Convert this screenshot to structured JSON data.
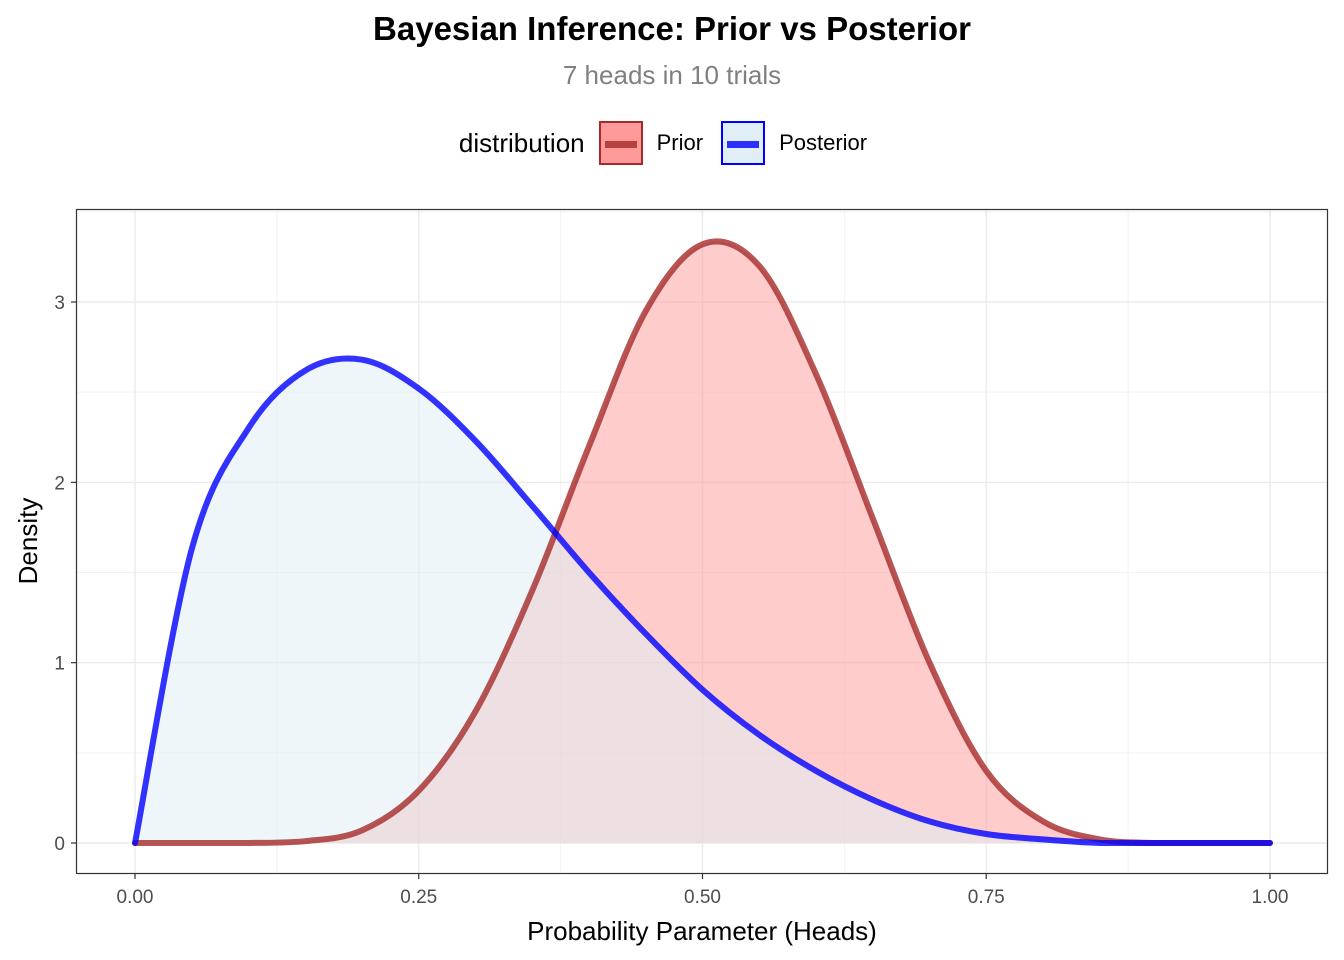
{
  "chart_data": {
    "type": "area",
    "title": "Bayesian Inference: Prior vs Posterior",
    "subtitle": "7 heads in 10 trials",
    "xlabel": "Probability Parameter (Heads)",
    "ylabel": "Density",
    "xlim": [
      0,
      1
    ],
    "ylim": [
      -0.17,
      3.5
    ],
    "x_ticks": [
      0,
      0.25,
      0.5,
      0.75,
      1
    ],
    "x_tick_labels": [
      "0.00",
      "0.25",
      "0.50",
      "0.75",
      "1.00"
    ],
    "y_ticks": [
      0,
      1,
      2,
      3
    ],
    "y_tick_labels": [
      "0",
      "1",
      "2",
      "3"
    ],
    "grid": true,
    "legend": {
      "title": "distribution",
      "position": "top"
    },
    "series": [
      {
        "name": "Prior",
        "line_color": "#a52a2a",
        "fill_color": "#ff9a9a",
        "x": [
          0,
          0.05,
          0.1,
          0.15,
          0.2,
          0.25,
          0.3,
          0.35,
          0.4,
          0.45,
          0.5,
          0.55,
          0.6,
          0.65,
          0.7,
          0.75,
          0.8,
          0.85,
          0.9,
          0.95,
          1
        ],
        "values": [
          0,
          0.0,
          0.0,
          0.01,
          0.07,
          0.29,
          0.73,
          1.4,
          2.2,
          2.95,
          3.32,
          3.2,
          2.6,
          1.8,
          1.0,
          0.4,
          0.12,
          0.02,
          0.0,
          0.0,
          0.0
        ]
      },
      {
        "name": "Posterior",
        "line_color": "#0000ff",
        "fill_color": "#e0eff5",
        "x": [
          0,
          0.05,
          0.1,
          0.15,
          0.2,
          0.25,
          0.3,
          0.35,
          0.4,
          0.45,
          0.5,
          0.55,
          0.6,
          0.65,
          0.7,
          0.75,
          0.8,
          0.85,
          0.9,
          0.95,
          1
        ],
        "values": [
          0,
          1.63,
          2.3,
          2.62,
          2.68,
          2.52,
          2.23,
          1.87,
          1.5,
          1.16,
          0.85,
          0.6,
          0.4,
          0.24,
          0.12,
          0.05,
          0.02,
          0.0,
          0.0,
          0.0,
          0.0
        ]
      }
    ]
  }
}
